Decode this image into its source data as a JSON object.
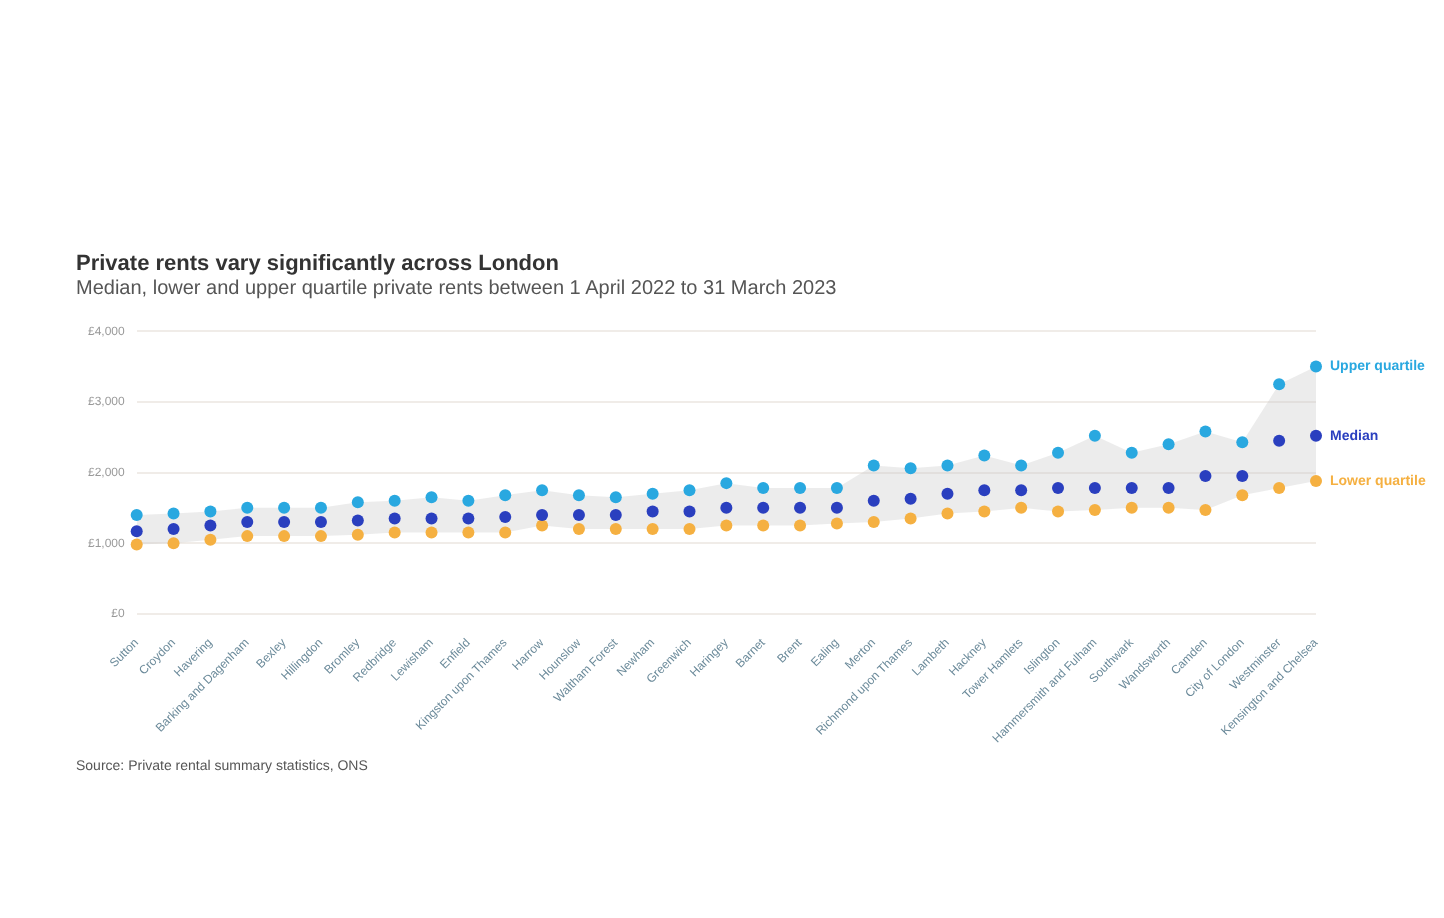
{
  "chart_data": {
    "type": "scatter",
    "title": "Private rents vary significantly across London",
    "subtitle": "Median, lower and upper quartile private rents between 1 April 2022 to 31 March 2023",
    "annotations": [
      "Source: Private rental summary statistics, ONS"
    ],
    "categories": [
      "Sutton",
      "Croydon",
      "Havering",
      "Barking and Dagenham",
      "Bexley",
      "Hillingdon",
      "Bromley",
      "Redbridge",
      "Lewisham",
      "Enfield",
      "Kingston upon Thames",
      "Harrow",
      "Hounslow",
      "Waltham Forest",
      "Newham",
      "Greenwich",
      "Haringey",
      "Barnet",
      "Brent",
      "Ealing",
      "Merton",
      "Richmond upon Thames",
      "Lambeth",
      "Hackney",
      "Tower Hamlets",
      "Islington",
      "Hammersmith and Fulham",
      "Southwark",
      "Wandsworth",
      "Camden",
      "City of London",
      "Westminster",
      "Kensington and Chelsea"
    ],
    "series": [
      {
        "name": "Upper quartile",
        "color": "#29a8e0",
        "values": [
          1400,
          1420,
          1450,
          1500,
          1500,
          1500,
          1580,
          1600,
          1650,
          1600,
          1680,
          1750,
          1680,
          1650,
          1700,
          1750,
          1850,
          1780,
          1780,
          1780,
          2100,
          2060,
          2100,
          2240,
          2100,
          2280,
          2520,
          2280,
          2400,
          2580,
          2430,
          3250,
          3500
        ]
      },
      {
        "name": "Median",
        "color": "#2a3fbf",
        "values": [
          1170,
          1200,
          1250,
          1300,
          1300,
          1300,
          1320,
          1350,
          1350,
          1350,
          1370,
          1400,
          1400,
          1400,
          1450,
          1450,
          1500,
          1500,
          1500,
          1500,
          1600,
          1630,
          1700,
          1750,
          1750,
          1780,
          1780,
          1780,
          1780,
          1950,
          1950,
          2450,
          2520
        ],
        "lower": [
          980,
          1000,
          1050,
          1100,
          1100,
          1100,
          1120,
          1150,
          1150,
          1150,
          1150,
          1250,
          1200,
          1200,
          1200,
          1200,
          1250,
          1250,
          1250,
          1280,
          1300,
          1350,
          1420,
          1450,
          1500,
          1450,
          1470,
          1500,
          1500,
          1470,
          1680,
          1780,
          1880
        ],
        "upper": [
          1400,
          1420,
          1450,
          1500,
          1500,
          1500,
          1580,
          1600,
          1650,
          1600,
          1680,
          1750,
          1680,
          1650,
          1700,
          1750,
          1850,
          1780,
          1780,
          1780,
          2100,
          2060,
          2100,
          2240,
          2100,
          2280,
          2520,
          2280,
          2400,
          2580,
          2430,
          3250,
          3500
        ]
      },
      {
        "name": "Lower quartile",
        "color": "#f5b041",
        "values": [
          980,
          1000,
          1050,
          1100,
          1100,
          1100,
          1120,
          1150,
          1150,
          1150,
          1150,
          1250,
          1200,
          1200,
          1200,
          1200,
          1250,
          1250,
          1250,
          1280,
          1300,
          1350,
          1420,
          1450,
          1500,
          1450,
          1470,
          1500,
          1500,
          1470,
          1680,
          1780,
          1880
        ]
      }
    ],
    "ylim": [
      0,
      4000
    ],
    "yticks": [
      {
        "value": 0,
        "label": "£0"
      },
      {
        "value": 1000,
        "label": "£1,000"
      },
      {
        "value": 2000,
        "label": "£2,000"
      },
      {
        "value": 3000,
        "label": "£3,000"
      },
      {
        "value": 4000,
        "label": "£4,000"
      }
    ],
    "grid": "y",
    "legend": false,
    "marker": "circle"
  }
}
